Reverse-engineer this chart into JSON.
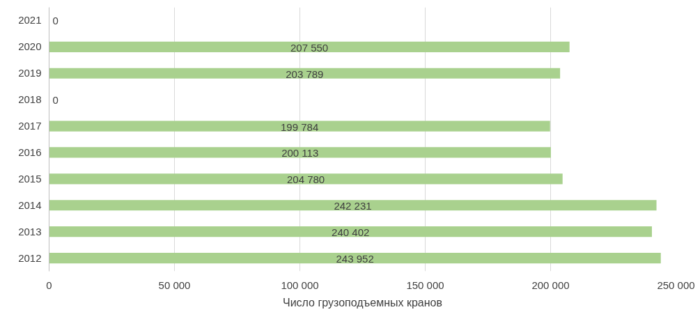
{
  "chart_data": {
    "type": "bar",
    "orientation": "horizontal",
    "xlabel": "Число грузоподъемных кранов",
    "categories": [
      "2021",
      "2020",
      "2019",
      "2018",
      "2017",
      "2016",
      "2015",
      "2014",
      "2013",
      "2012"
    ],
    "values": [
      0,
      207550,
      203789,
      0,
      199784,
      200113,
      204780,
      242231,
      240402,
      243952
    ],
    "value_labels": [
      "0",
      "207 550",
      "203 789",
      "0",
      "199 784",
      "200 113",
      "204 780",
      "242 231",
      "240 402",
      "243 952"
    ],
    "color": "#a9d18e",
    "xlim": [
      0,
      250000
    ],
    "xticks": [
      {
        "value": 0,
        "label": "0"
      },
      {
        "value": 50000,
        "label": "50 000"
      },
      {
        "value": 100000,
        "label": "100 000"
      },
      {
        "value": 150000,
        "label": "150 000"
      },
      {
        "value": 200000,
        "label": "200 000"
      },
      {
        "value": 250000,
        "label": "250 000"
      }
    ],
    "grid": "x"
  }
}
